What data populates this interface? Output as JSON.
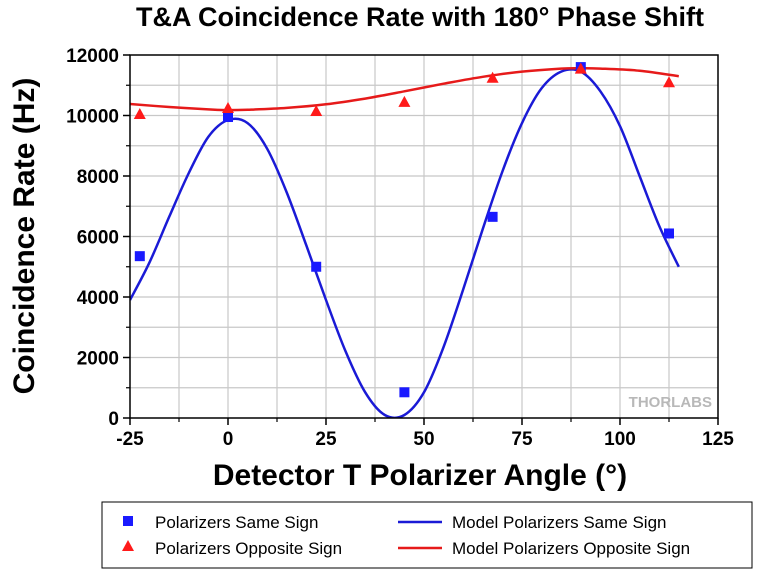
{
  "chart_data": {
    "type": "scatter",
    "title": "T&A Coincidence Rate with 180° Phase Shift",
    "xlabel": "Detector T Polarizer Angle (°)",
    "ylabel": "Coincidence Rate (Hz)",
    "xlim": [
      -25,
      125
    ],
    "ylim": [
      0,
      12000
    ],
    "xticks": [
      -25,
      0,
      25,
      50,
      75,
      100,
      125
    ],
    "yticks": [
      0,
      2000,
      4000,
      6000,
      8000,
      10000,
      12000
    ],
    "grid": true,
    "legend_position": "bottom",
    "watermark": "THORLABS",
    "series": [
      {
        "name": "Polarizers Same Sign",
        "kind": "points",
        "marker": "square",
        "color": "#1a1aff",
        "x": [
          -22.5,
          0,
          22.5,
          45,
          67.5,
          90,
          112.5
        ],
        "y": [
          5350,
          9950,
          5000,
          850,
          6650,
          11600,
          6100
        ]
      },
      {
        "name": "Polarizers Opposite Sign",
        "kind": "points",
        "marker": "triangle",
        "color": "#ff1a1a",
        "x": [
          -22.5,
          0,
          22.5,
          45,
          67.5,
          90,
          112.5
        ],
        "y": [
          10050,
          10250,
          10150,
          10450,
          11250,
          11550,
          11100
        ]
      },
      {
        "name": "Model Polarizers Same Sign",
        "kind": "line",
        "color": "#1a1ad6",
        "x": [
          -25,
          -20,
          -15,
          -10,
          -5,
          0,
          5,
          10,
          15,
          20,
          25,
          30,
          35,
          40,
          45,
          50,
          55,
          60,
          65,
          70,
          75,
          80,
          85,
          90,
          95,
          100,
          105,
          110,
          115
        ],
        "y": [
          3900,
          5150,
          6650,
          8100,
          9300,
          9850,
          9750,
          8900,
          7450,
          5700,
          3900,
          2200,
          850,
          100,
          100,
          850,
          2350,
          4250,
          6250,
          8150,
          9750,
          10900,
          11450,
          11450,
          10800,
          9650,
          8000,
          6350,
          5000
        ]
      },
      {
        "name": "Model Polarizers Opposite Sign",
        "kind": "line",
        "color": "#e61a1a",
        "x": [
          -25,
          -15,
          -5,
          0,
          5,
          15,
          25,
          35,
          45,
          55,
          65,
          75,
          85,
          90,
          95,
          105,
          115
        ],
        "y": [
          10380,
          10280,
          10200,
          10180,
          10190,
          10250,
          10370,
          10560,
          10800,
          11050,
          11280,
          11450,
          11550,
          11560,
          11550,
          11480,
          11300
        ]
      }
    ]
  }
}
